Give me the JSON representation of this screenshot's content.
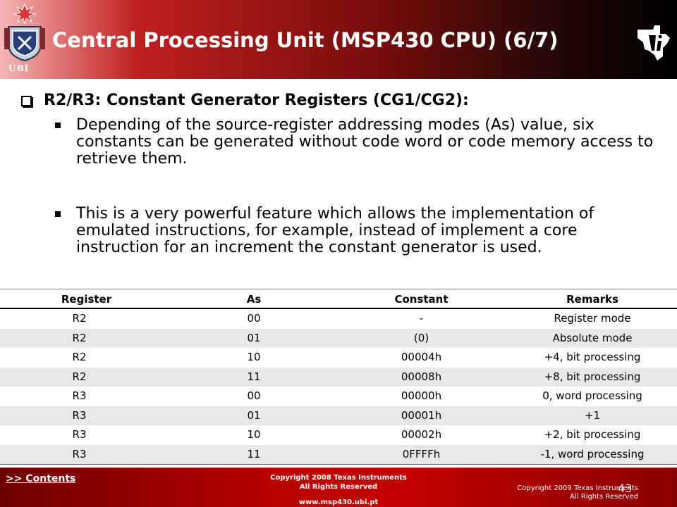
{
  "header": {
    "title": "Central Processing Unit (MSP430 CPU)  (6/7)",
    "logo_text": "UBI"
  },
  "content": {
    "heading": "R2/R3: Constant Generator Registers (CG1/CG2):",
    "bullets": [
      "Depending of the source-register addressing modes (As) value, six constants can be generated without code word or code memory access to retrieve them.",
      "This is a very powerful feature which allows the implementation of emulated instructions, for example, instead of implement a core instruction for an increment the constant generator is used."
    ]
  },
  "table": {
    "headers": [
      "Register",
      "As",
      "Constant",
      "Remarks"
    ],
    "rows": [
      [
        "R2",
        "00",
        "-",
        "Register mode"
      ],
      [
        "R2",
        "01",
        "(0)",
        "Absolute mode"
      ],
      [
        "R2",
        "10",
        "00004h",
        "+4, bit processing"
      ],
      [
        "R2",
        "11",
        "00008h",
        "+8, bit processing"
      ],
      [
        "R3",
        "00",
        "00000h",
        "0, word processing"
      ],
      [
        "R3",
        "01",
        "00001h",
        "+1"
      ],
      [
        "R3",
        "10",
        "00002h",
        "+2, bit processing"
      ],
      [
        "R3",
        "11",
        "0FFFFh",
        "-1, word processing"
      ]
    ]
  },
  "footer": {
    "contents_link": ">> Contents",
    "copyright_mid_1": "Copyright  2008 Texas Instruments",
    "copyright_mid_2": "All Rights Reserved",
    "url": "www.msp430.ubi.pt",
    "copyright_right_1": "Copyright  2009 Texas Instruments",
    "copyright_right_2": "All Rights Reserved",
    "page_number": "43"
  },
  "colors": {
    "header_red": "#c02020",
    "footer_red": "#b80000",
    "row_alt": "#e8e8e8"
  }
}
